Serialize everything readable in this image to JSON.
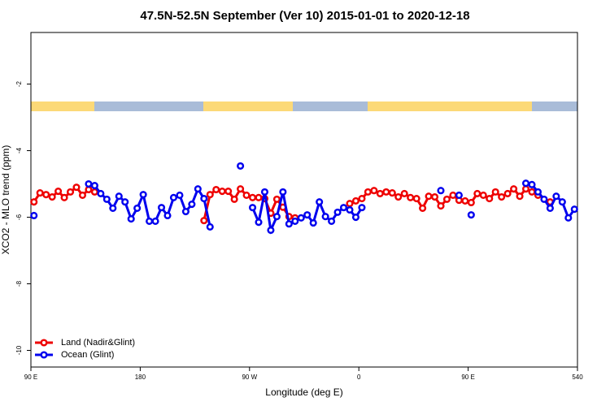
{
  "chart_data": {
    "type": "line",
    "title": "47.5N-52.5N September (Ver 10)   2015-01-01 to 2020-12-18",
    "x_label": "Longitude (deg E)",
    "y_label": "XCO2 - MLO trend (ppm)",
    "xlim": [
      90,
      540
    ],
    "xticks": [
      {
        "value": 90,
        "label": "90 E"
      },
      180,
      {
        "value": 270,
        "label": "90 W"
      },
      {
        "value": 360,
        "label": "0"
      },
      {
        "value": 450,
        "label": "90 E"
      },
      540
    ],
    "ylim": [
      -10.5,
      -0.45
    ],
    "yticks": [
      -10,
      -8,
      -6,
      -4,
      -2
    ],
    "legend": "bottom-left",
    "x": [
      92.5,
      97.5,
      102.5,
      107.5,
      112.5,
      117.5,
      122.5,
      127.5,
      132.5,
      137.5,
      142.5,
      147.5,
      152.5,
      157.5,
      162.5,
      167.5,
      172.5,
      177.5,
      182.5,
      187.5,
      192.5,
      197.5,
      202.5,
      207.5,
      212.5,
      217.5,
      222.5,
      227.5,
      232.5,
      237.5,
      242.5,
      247.5,
      252.5,
      257.5,
      262.5,
      267.5,
      272.5,
      277.5,
      282.5,
      287.5,
      292.5,
      297.5,
      302.5,
      307.5,
      312.5,
      317.5,
      322.5,
      327.5,
      332.5,
      337.5,
      342.5,
      347.5,
      352.5,
      357.5,
      362.5,
      367.5,
      372.5,
      377.5,
      382.5,
      387.5,
      392.5,
      397.5,
      402.5,
      407.5,
      412.5,
      417.5,
      422.5,
      427.5,
      432.5,
      437.5,
      442.5,
      447.5,
      452.5,
      457.5,
      462.5,
      467.5,
      472.5,
      477.5,
      482.5,
      487.5,
      492.5,
      497.5,
      502.5,
      507.5,
      512.5,
      517.5,
      522.5,
      527.5,
      532.5,
      537.5
    ],
    "series": [
      {
        "name": "Land (Nadir&Glint)",
        "color": "#ee0000",
        "values": [
          -5.54,
          -5.27,
          -5.32,
          -5.39,
          -5.22,
          -5.41,
          -5.24,
          -5.1,
          -5.34,
          -5.17,
          -5.24,
          null,
          null,
          null,
          null,
          null,
          null,
          null,
          null,
          null,
          null,
          null,
          null,
          null,
          null,
          null,
          null,
          null,
          -6.1,
          -5.32,
          -5.17,
          -5.22,
          -5.22,
          -5.46,
          -5.15,
          -5.34,
          -5.41,
          -5.41,
          -5.44,
          -5.88,
          -5.46,
          -5.7,
          -5.98,
          -6.02,
          null,
          null,
          null,
          null,
          null,
          null,
          null,
          null,
          -5.59,
          -5.51,
          -5.44,
          -5.24,
          -5.2,
          -5.29,
          -5.24,
          -5.27,
          -5.39,
          -5.29,
          -5.41,
          -5.44,
          -5.73,
          -5.37,
          -5.39,
          -5.66,
          -5.46,
          -5.34,
          -5.49,
          -5.51,
          -5.56,
          -5.29,
          -5.34,
          -5.44,
          -5.24,
          -5.39,
          -5.29,
          -5.15,
          -5.37,
          -5.15,
          -5.24,
          -5.34,
          null,
          -5.54,
          null,
          null,
          null,
          null
        ]
      },
      {
        "name": "Ocean (Glint)",
        "color": "#0000ee",
        "values": [
          -5.95,
          null,
          null,
          null,
          null,
          null,
          null,
          null,
          null,
          -5.0,
          -5.05,
          -5.29,
          -5.46,
          -5.73,
          -5.37,
          -5.54,
          -6.05,
          -5.73,
          -5.32,
          -6.12,
          -6.12,
          -5.71,
          -5.95,
          -5.41,
          -5.34,
          -5.83,
          -5.61,
          -5.15,
          -5.44,
          -6.29,
          null,
          null,
          null,
          null,
          -4.46,
          null,
          -5.71,
          -6.15,
          -5.24,
          -6.39,
          -5.98,
          -5.24,
          -6.2,
          -6.12,
          -6.02,
          -5.93,
          -6.17,
          -5.54,
          -5.98,
          -6.12,
          -5.85,
          -5.71,
          -5.78,
          -6.0,
          -5.71,
          null,
          null,
          null,
          null,
          null,
          null,
          null,
          null,
          null,
          null,
          null,
          null,
          -5.2,
          null,
          null,
          -5.34,
          null,
          -5.93,
          null,
          null,
          null,
          null,
          null,
          null,
          null,
          null,
          -4.98,
          -5.02,
          -5.24,
          -5.46,
          -5.73,
          -5.37,
          -5.54,
          -6.02,
          -5.76
        ]
      }
    ]
  }
}
